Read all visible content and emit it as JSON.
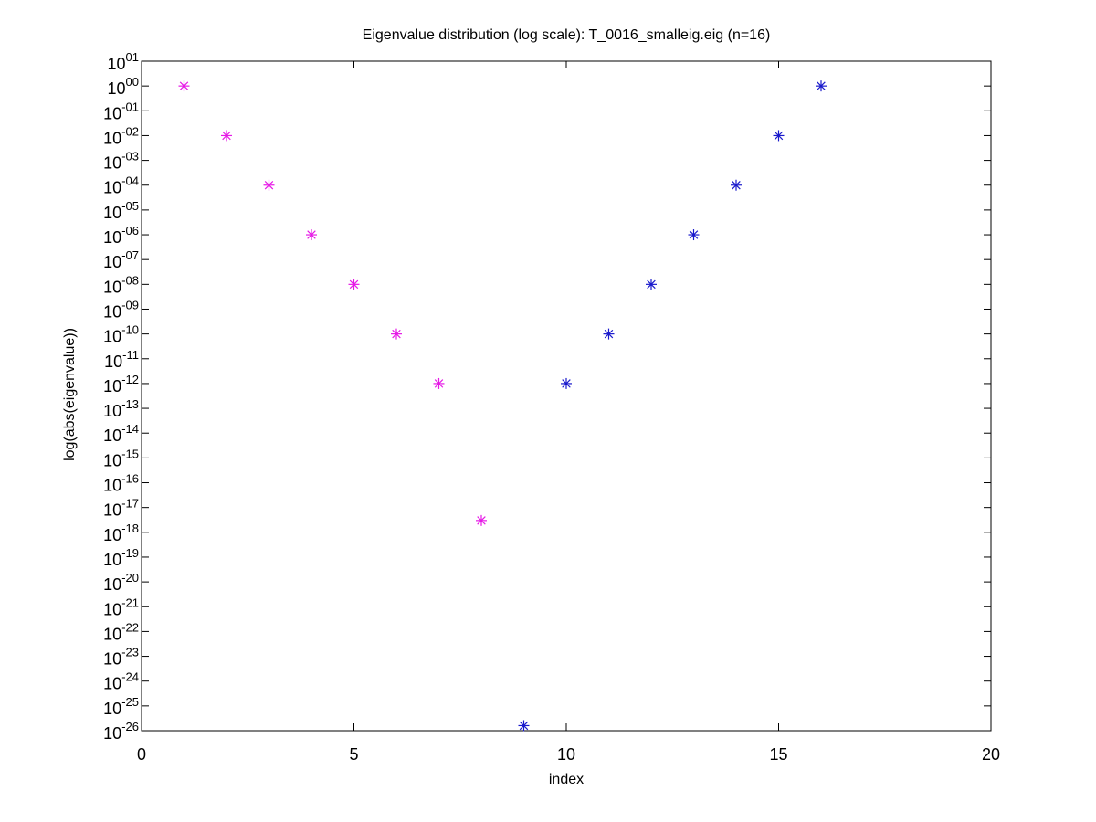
{
  "chart_data": {
    "type": "scatter",
    "title": "Eigenvalue distribution (log scale): T_0016_smalleig.eig (n=16)",
    "xlabel": "index",
    "ylabel": "log(abs(eigenvalue))",
    "xlim": [
      0,
      20
    ],
    "ylim_exponent": [
      -26,
      1
    ],
    "y_scale": "log",
    "x_ticks": [
      "0",
      "5",
      "10",
      "15",
      "20"
    ],
    "y_tick_base": "10",
    "y_tick_exponents": [
      "01",
      "00",
      "-01",
      "-02",
      "-03",
      "-04",
      "-05",
      "-06",
      "-07",
      "-08",
      "-09",
      "-10",
      "-11",
      "-12",
      "-13",
      "-14",
      "-15",
      "-16",
      "-17",
      "-18",
      "-19",
      "-20",
      "-21",
      "-22",
      "-23",
      "-24",
      "-25",
      "-26"
    ],
    "marker": "asterisk",
    "grid": false,
    "series": [
      {
        "color": "#e619e6",
        "x": [
          1,
          2,
          3,
          4,
          5,
          6,
          7,
          8
        ],
        "y": [
          1,
          0.01,
          0.0001,
          1e-06,
          1e-08,
          1e-10,
          1e-12,
          3e-18
        ]
      },
      {
        "color": "#1a1acc",
        "x": [
          9,
          10,
          11,
          12,
          13,
          14,
          15,
          16
        ],
        "y": [
          1.6e-26,
          1e-12,
          1e-10,
          1e-08,
          1e-06,
          0.0001,
          0.01,
          1
        ]
      }
    ]
  }
}
